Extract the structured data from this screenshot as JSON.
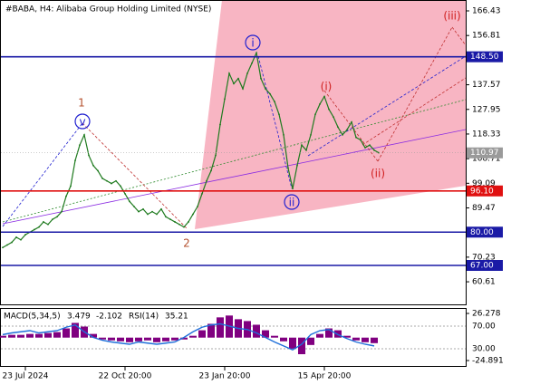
{
  "chart_data": [
    {
      "type": "line",
      "title": "#BABA, H4:  Alibaba Group Holding Limited (NYSE)",
      "color": "#1e7a1e",
      "values": [
        74,
        75,
        76,
        78,
        77,
        79,
        80,
        81,
        82,
        84,
        83,
        85,
        86,
        88,
        94,
        98,
        108,
        114,
        118,
        110,
        106,
        104,
        101,
        100,
        99,
        100,
        98,
        95,
        92,
        90,
        88,
        89,
        87,
        88,
        87,
        89,
        86,
        85,
        84,
        83,
        82,
        84,
        87,
        90,
        95,
        100,
        104,
        110,
        122,
        132,
        142,
        138,
        140,
        136,
        142,
        146,
        150,
        140,
        136,
        134,
        131,
        126,
        118,
        105,
        97,
        106,
        114,
        112,
        118,
        126,
        130,
        133,
        128,
        125,
        121,
        118,
        120,
        123,
        117,
        116,
        113,
        114,
        112,
        111
      ],
      "xlim": [
        0,
        83
      ],
      "xticks": [
        {
          "value": 5,
          "label": "23 Jul 2024"
        },
        {
          "value": 27,
          "label": "22 Oct 20:00"
        },
        {
          "value": 49,
          "label": "23 Jan 20:00"
        },
        {
          "value": 71,
          "label": "15 Apr 20:00"
        }
      ],
      "ylim": [
        51.43,
        170.68
      ],
      "yticks": [
        166.43,
        156.81,
        137.57,
        127.95,
        118.33,
        108.71,
        99.09,
        89.47,
        70.23,
        60.61
      ],
      "levels": [
        {
          "value": 148.5,
          "label": "148.50",
          "color": "#1a1aa6"
        },
        {
          "value": 110.97,
          "label": "110.97",
          "color": "#9a9a9a"
        },
        {
          "value": 96.1,
          "label": "96.10",
          "color": "#e01010"
        },
        {
          "value": 80,
          "label": "80.00",
          "color": "#1a1aa6"
        },
        {
          "value": 67,
          "label": "67.00",
          "color": "#1a1aa6"
        }
      ],
      "annotations": [
        "1",
        "2",
        "v",
        "i",
        "ii",
        "(i)",
        "(ii)",
        "(iii)"
      ]
    },
    {
      "type": "macd",
      "indicator": "MACD(5,34,5)",
      "macd_value": 3.479,
      "signal_value": -2.102,
      "rsi_name": "RSI(14)",
      "rsi_value": 35.21,
      "color": "#800080",
      "rsi_color": "#1e6fd9",
      "values": [
        2,
        3,
        3,
        4,
        4,
        5,
        6,
        10,
        16,
        12,
        4,
        -2,
        -3,
        -4,
        -5,
        -4,
        -3,
        -5,
        -4,
        -3,
        -2,
        2,
        8,
        15,
        22,
        24,
        20,
        18,
        14,
        8,
        2,
        -4,
        -12,
        -18,
        -8,
        4,
        10,
        8,
        2,
        -3,
        -5,
        -6
      ],
      "rsi": [
        55,
        58,
        60,
        62,
        58,
        60,
        62,
        68,
        72,
        60,
        50,
        45,
        42,
        40,
        38,
        42,
        40,
        38,
        40,
        42,
        50,
        60,
        68,
        72,
        74,
        70,
        66,
        64,
        58,
        50,
        42,
        35,
        28,
        38,
        55,
        62,
        64,
        55,
        48,
        42,
        38,
        35
      ],
      "xlim": [
        0,
        41
      ],
      "ylim": [
        -31.78,
        31.2
      ],
      "yticks": [
        26.278,
        -24.891
      ],
      "y2lim": [
        -2,
        100.4
      ],
      "y2ticks": [
        {
          "value": 70,
          "label": "70.00"
        },
        {
          "value": 30,
          "label": "30.00"
        }
      ]
    }
  ]
}
